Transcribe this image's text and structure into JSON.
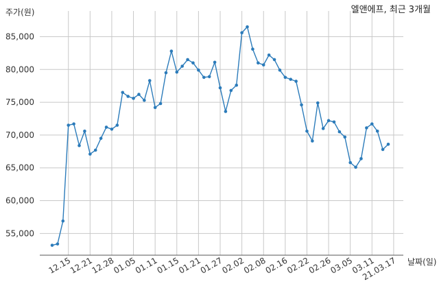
{
  "chart_data": {
    "type": "line",
    "title": "엘앤에프, 최근 3개월",
    "ylabel": "주가(원)",
    "xlabel": "날짜(일)",
    "ylim": [
      52000,
      88500
    ],
    "yticks": [
      55000,
      60000,
      65000,
      70000,
      75000,
      80000,
      85000
    ],
    "ytick_labels": [
      "55,000",
      "60,000",
      "65,000",
      "70,000",
      "75,000",
      "80,000",
      "85,000"
    ],
    "xtick_labels": [
      "12.15",
      "12.21",
      "12.28",
      "01.05",
      "01.11",
      "01.15",
      "01.21",
      "01.27",
      "02.02",
      "02.08",
      "02.16",
      "02.22",
      "02.26",
      "03.05",
      "03.11",
      "21.03.17"
    ],
    "xtick_indices": [
      3,
      7,
      11,
      15,
      19,
      23,
      27,
      31,
      35,
      39,
      43,
      47,
      51,
      55,
      59,
      63
    ],
    "grid": true,
    "color": "#2b7bba",
    "series": [
      {
        "values": [
          53200,
          53400,
          56900,
          71500,
          71700,
          68400,
          70600,
          67100,
          67700,
          69500,
          71200,
          70900,
          71500,
          76500,
          75900,
          75600,
          76200,
          75300,
          78300,
          74200,
          74800,
          79500,
          82800,
          79600,
          80500,
          81500,
          81000,
          79900,
          78800,
          78900,
          81100,
          77200,
          73600,
          76800,
          77600,
          85600,
          86500,
          83100,
          81000,
          80700,
          82200,
          81500,
          79900,
          78800,
          78500,
          78200,
          74600,
          70600,
          69100,
          74900,
          71000,
          72200,
          72000,
          70500,
          69700,
          65800,
          65100,
          66400,
          71100,
          71700,
          70600,
          67800,
          68600
        ]
      }
    ]
  }
}
